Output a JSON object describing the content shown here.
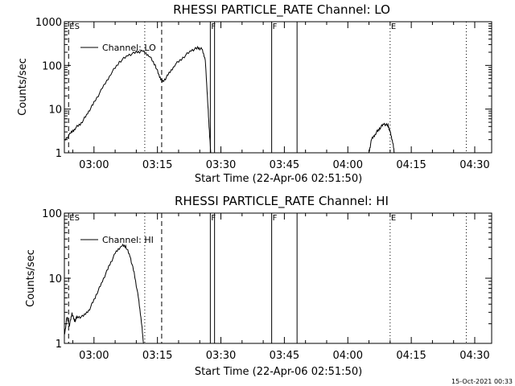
{
  "chart_data": [
    {
      "type": "line",
      "title": "RHESSI PARTICLE_RATE Channel: LO",
      "xlabel": "Start Time (22-Apr-06 02:51:50)",
      "ylabel": "Counts/sec",
      "x_ticks": [
        "03:00",
        "03:15",
        "03:30",
        "03:45",
        "04:00",
        "04:15",
        "04:30"
      ],
      "y_ticks": [
        "1",
        "10",
        "100",
        "1000"
      ],
      "y_scale": "log",
      "ylim": [
        1,
        1000
      ],
      "xlim_minutes": [
        173,
        274
      ],
      "legend": "Channel: LO",
      "legend_position": "top-left",
      "markers": [
        {
          "label": "ES",
          "t": 174,
          "style": "dashed"
        },
        {
          "label": "",
          "t": 192,
          "style": "dotted"
        },
        {
          "label": "",
          "t": 196,
          "style": "dashed"
        },
        {
          "label": "F",
          "t": 207.5,
          "style": "solid"
        },
        {
          "label": "",
          "t": 208.5,
          "style": "solid"
        },
        {
          "label": "F",
          "t": 222,
          "style": "solid"
        },
        {
          "label": "",
          "t": 228,
          "style": "solid"
        },
        {
          "label": "E",
          "t": 250,
          "style": "dotted"
        },
        {
          "label": "",
          "t": 268,
          "style": "dotted"
        }
      ],
      "series": [
        {
          "name": "Channel: LO",
          "segments": [
            [
              [
                173.0,
                1.9
              ],
              [
                174.5,
                2.8
              ],
              [
                175.5,
                3.6
              ],
              [
                177.0,
                4.8
              ],
              [
                178.5,
                8
              ],
              [
                180.0,
                14
              ],
              [
                182.0,
                30
              ],
              [
                184.0,
                65
              ],
              [
                186.0,
                120
              ],
              [
                188.0,
                170
              ],
              [
                190.0,
                200
              ],
              [
                191.5,
                210
              ],
              [
                193.0,
                170
              ],
              [
                194.5,
                100
              ],
              [
                195.5,
                55
              ],
              [
                196.3,
                42
              ],
              [
                197.5,
                60
              ],
              [
                199.0,
                100
              ],
              [
                201.0,
                150
              ],
              [
                203.0,
                220
              ],
              [
                204.5,
                250
              ],
              [
                205.5,
                235
              ],
              [
                206.3,
                140
              ],
              [
                206.8,
                20
              ],
              [
                207.2,
                4
              ],
              [
                207.6,
                1
              ]
            ],
            [
              [
                245.0,
                1
              ],
              [
                245.6,
                2
              ],
              [
                246.6,
                2.8
              ],
              [
                247.5,
                3.6
              ],
              [
                248.5,
                4.6
              ],
              [
                249.5,
                4.2
              ],
              [
                250.0,
                3
              ],
              [
                250.6,
                1.8
              ],
              [
                251.0,
                1
              ]
            ]
          ]
        }
      ]
    },
    {
      "type": "line",
      "title": "RHESSI PARTICLE_RATE Channel: HI",
      "xlabel": "Start Time (22-Apr-06 02:51:50)",
      "ylabel": "Counts/sec",
      "x_ticks": [
        "03:00",
        "03:15",
        "03:30",
        "03:45",
        "04:00",
        "04:15",
        "04:30"
      ],
      "y_ticks": [
        "1",
        "10",
        "100"
      ],
      "y_scale": "log",
      "ylim": [
        1,
        100
      ],
      "xlim_minutes": [
        173,
        274
      ],
      "legend": "Channel: HI",
      "legend_position": "top-left",
      "markers": [
        {
          "label": "ES",
          "t": 174,
          "style": "dashed"
        },
        {
          "label": "",
          "t": 192,
          "style": "dotted"
        },
        {
          "label": "",
          "t": 196,
          "style": "dashed"
        },
        {
          "label": "F",
          "t": 207.5,
          "style": "solid"
        },
        {
          "label": "",
          "t": 208.5,
          "style": "solid"
        },
        {
          "label": "F",
          "t": 222,
          "style": "solid"
        },
        {
          "label": "",
          "t": 228,
          "style": "solid"
        },
        {
          "label": "E",
          "t": 250,
          "style": "dotted"
        },
        {
          "label": "",
          "t": 268,
          "style": "dotted"
        }
      ],
      "series": [
        {
          "name": "Channel: HI",
          "segments": [
            [
              [
                173.0,
                1.3
              ],
              [
                173.6,
                2.5
              ],
              [
                174.2,
                1.9
              ],
              [
                174.8,
                2.9
              ],
              [
                175.4,
                2.2
              ],
              [
                176.0,
                2.5
              ],
              [
                177.5,
                2.6
              ],
              [
                179.0,
                3.4
              ],
              [
                180.5,
                5.5
              ],
              [
                182.0,
                9
              ],
              [
                183.5,
                15
              ],
              [
                185.0,
                24
              ],
              [
                186.5,
                32
              ],
              [
                187.5,
                31
              ],
              [
                188.5,
                22
              ],
              [
                189.5,
                12
              ],
              [
                190.5,
                5
              ],
              [
                191.2,
                2.2
              ],
              [
                191.7,
                1
              ]
            ]
          ]
        }
      ]
    }
  ],
  "footer": {
    "timestamp": "15-Oct-2021 00:33"
  }
}
